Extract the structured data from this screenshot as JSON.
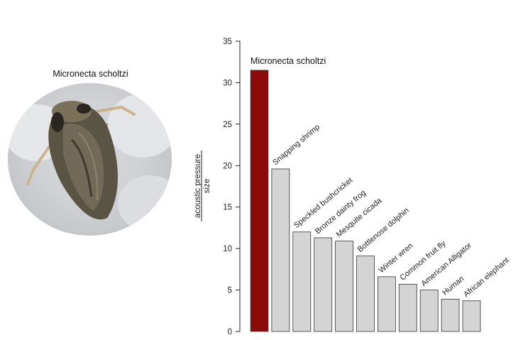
{
  "photo": {
    "caption": "Micronecta scholtzi"
  },
  "colors": {
    "highlight_bar": "#8b0a0a",
    "default_bar": "#d4d4d4",
    "bar_stroke": "#333333",
    "axis": "#222222"
  },
  "chart_data": {
    "type": "bar",
    "ylabel_line1": "acoustic pressure",
    "ylabel_line2": "size",
    "ylim": [
      0,
      35
    ],
    "yticks": [
      0,
      5,
      10,
      15,
      20,
      25,
      30,
      35
    ],
    "grid": false,
    "highlight_label": "Micronecta scholtzi",
    "categories": [
      "Micronecta scholtzi",
      "Snapping shrimp",
      "Speckled bushcricket",
      "Bronze dainty frog",
      "Mesquite cicada",
      "Bottlenose dolphin",
      "Winter wren",
      "Common fruit fly",
      "American Alligator",
      "Human",
      "African elephant"
    ],
    "values": [
      31.5,
      19.6,
      12.0,
      11.3,
      10.9,
      9.1,
      6.6,
      5.7,
      5.0,
      3.9,
      3.7
    ],
    "highlight_index": 0
  }
}
